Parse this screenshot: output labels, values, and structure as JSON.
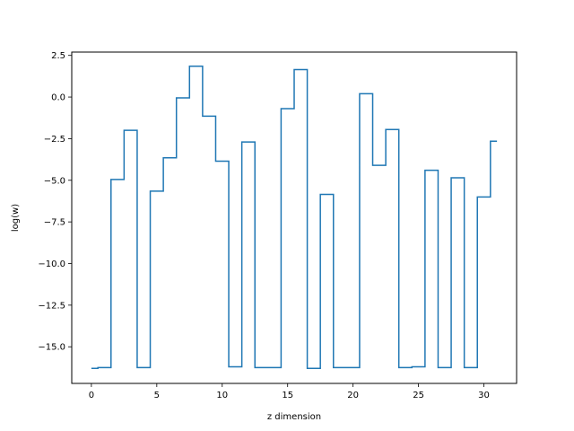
{
  "chart_data": {
    "type": "line",
    "drawstyle": "steps-mid",
    "xlabel": "z dimension",
    "ylabel": "log(w)",
    "xlim": [
      -1.5,
      32.5
    ],
    "ylim": [
      -17.2,
      2.7
    ],
    "xticks": [
      0,
      5,
      10,
      15,
      20,
      25,
      30
    ],
    "yticks": [
      -15.0,
      -12.5,
      -10.0,
      -7.5,
      -5.0,
      -2.5,
      0.0,
      2.5
    ],
    "xtick_labels": [
      "0",
      "5",
      "10",
      "15",
      "20",
      "25",
      "30"
    ],
    "ytick_labels": [
      "−15.0",
      "−12.5",
      "−10.0",
      "−7.5",
      "−5.0",
      "−2.5",
      "0.0",
      "2.5"
    ],
    "grid": false,
    "series": [
      {
        "color": "#1f77b4",
        "x": [
          0,
          1,
          2,
          3,
          4,
          5,
          6,
          7,
          8,
          9,
          10,
          11,
          12,
          13,
          14,
          15,
          16,
          17,
          18,
          19,
          20,
          21,
          22,
          23,
          24,
          25,
          26,
          27,
          28,
          29,
          30,
          31
        ],
        "y": [
          -16.3,
          -16.25,
          -4.95,
          -2.0,
          -16.25,
          -5.65,
          -3.65,
          -0.05,
          1.85,
          -1.15,
          -3.85,
          -16.2,
          -2.7,
          -16.25,
          -16.25,
          -0.7,
          1.65,
          -16.3,
          -5.85,
          -16.25,
          -16.25,
          0.2,
          -4.1,
          -1.95,
          -16.25,
          -16.2,
          -4.4,
          -16.25,
          -4.85,
          -16.25,
          -6.0,
          -2.65
        ]
      }
    ]
  }
}
